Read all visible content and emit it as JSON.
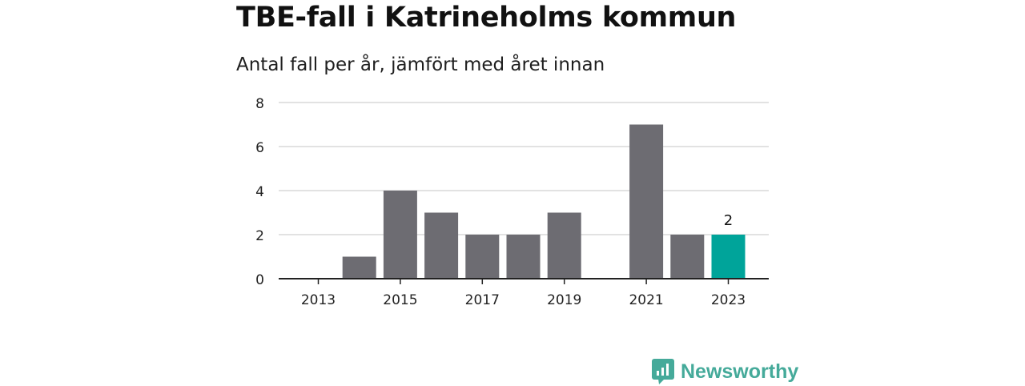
{
  "title": "TBE-fall i Katrineholms kommun",
  "subtitle": "Antal fall per år, jämfört med året innan",
  "brand": {
    "name": "Newsworthy",
    "icon": "newsworthy-logo-icon",
    "color": "#45aa9a"
  },
  "chart_data": {
    "type": "bar",
    "categories": [
      "2013",
      "2014",
      "2015",
      "2016",
      "2017",
      "2018",
      "2019",
      "2020",
      "2021",
      "2022",
      "2023"
    ],
    "values": [
      0,
      1,
      4,
      3,
      2,
      2,
      3,
      0,
      7,
      2,
      2
    ],
    "xticks": [
      "2013",
      "2015",
      "2017",
      "2019",
      "2021",
      "2023"
    ],
    "yticks": [
      0,
      2,
      4,
      6,
      8
    ],
    "ylim": [
      0,
      8
    ],
    "grid": true,
    "highlight": {
      "category": "2023",
      "label": "2"
    },
    "colors": {
      "bar": "#6d6c72",
      "highlight": "#00a49a",
      "grid": "#d9d9d9",
      "axis": "#222222"
    }
  }
}
